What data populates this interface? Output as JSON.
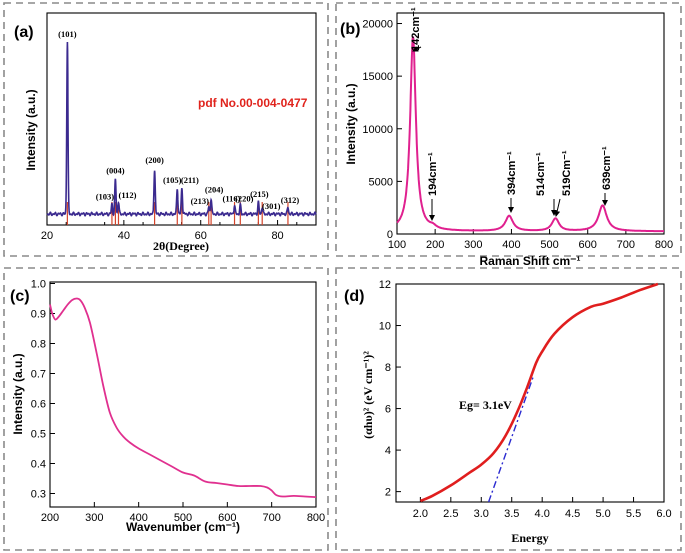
{
  "panels": {
    "a": "(a)",
    "b": "(b)",
    "c": "(c)",
    "d": "(d)"
  },
  "colors": {
    "xrd_line": "#3b2a8f",
    "ref_line": "#d4442a",
    "raman_line": "#e0208f",
    "uv_line": "#e0308f",
    "tauc_line": "#e01e1e",
    "tauc_fit": "#2a2ad0",
    "pdf_text": "#e0231c",
    "frame": "#8a8a8a"
  },
  "chart_data": [
    {
      "panel": "a",
      "type": "line",
      "title": "",
      "xlabel": "2θ(Degree)",
      "ylabel": "Intensity (a.u.)",
      "xlim": [
        20,
        90
      ],
      "ylim": [
        0,
        1.1
      ],
      "xticks": [
        "20",
        "40",
        "60",
        "80"
      ],
      "annotation": "pdf No.00-004-0477",
      "peaks": [
        {
          "x": 25.3,
          "h": 1.0,
          "label": "(101)"
        },
        {
          "x": 36.9,
          "h": 0.06,
          "label": "(103)"
        },
        {
          "x": 37.8,
          "h": 0.2,
          "label": "(004)"
        },
        {
          "x": 38.6,
          "h": 0.07,
          "label": "(112)"
        },
        {
          "x": 48.0,
          "h": 0.26,
          "label": "(200)"
        },
        {
          "x": 53.9,
          "h": 0.15,
          "label": "(105)"
        },
        {
          "x": 55.1,
          "h": 0.15,
          "label": "(211)"
        },
        {
          "x": 62.7,
          "h": 0.09,
          "label": "(204)"
        },
        {
          "x": 62.1,
          "h": 0.04,
          "label": "(213)"
        },
        {
          "x": 68.8,
          "h": 0.05,
          "label": "(116)"
        },
        {
          "x": 70.3,
          "h": 0.05,
          "label": "(220)"
        },
        {
          "x": 75.0,
          "h": 0.07,
          "label": "(215)"
        },
        {
          "x": 76.0,
          "h": 0.04,
          "label": "(301)"
        },
        {
          "x": 82.7,
          "h": 0.04,
          "label": "(312)"
        }
      ],
      "reference_lines": [
        25.3,
        36.9,
        37.8,
        38.6,
        48.0,
        53.9,
        55.1,
        62.1,
        62.7,
        68.8,
        70.3,
        75.0,
        76.0,
        82.7
      ]
    },
    {
      "panel": "b",
      "type": "line",
      "xlabel": "Raman Shift cm⁻¹",
      "ylabel": "Intensity (a.u.)",
      "xlim": [
        100,
        800
      ],
      "ylim": [
        0,
        21000
      ],
      "xticks": [
        100,
        200,
        300,
        400,
        500,
        600,
        700,
        800
      ],
      "yticks": [
        0,
        5000,
        10000,
        15000,
        20000
      ],
      "ytick_labels": [
        "0",
        "5000",
        "10000",
        "15000",
        "20000"
      ],
      "xtick_labels": [
        "100",
        "200",
        "300",
        "400",
        "500",
        "600",
        "700",
        "800"
      ],
      "peaks": [
        {
          "x": 142,
          "h": 18500,
          "w": 9
        },
        {
          "x": 194,
          "h": 250,
          "w": 10
        },
        {
          "x": 394,
          "h": 1450,
          "w": 12
        },
        {
          "x": 514,
          "h": 900,
          "w": 11
        },
        {
          "x": 519,
          "h": 350,
          "w": 9
        },
        {
          "x": 639,
          "h": 2450,
          "w": 13
        }
      ],
      "baseline": 250,
      "labels": [
        "142cm⁻¹",
        "194cm⁻¹",
        "394cm⁻¹",
        "514cm⁻¹",
        "519Cm⁻¹",
        "639cm⁻¹"
      ]
    },
    {
      "panel": "c",
      "type": "line",
      "xlabel": "Wavenumber (cm⁻¹)",
      "ylabel": "Intensity (a.u.)",
      "xlim": [
        200,
        800
      ],
      "ylim": [
        0.26,
        1.0
      ],
      "xticks": [
        "200",
        "300",
        "400",
        "500",
        "600",
        "700",
        "800"
      ],
      "yticks": [
        "0.3",
        "0.4",
        "0.5",
        "0.6",
        "0.7",
        "0.8",
        "0.9",
        "1.0"
      ],
      "x": [
        200,
        205,
        212,
        220,
        230,
        240,
        250,
        260,
        268,
        278,
        290,
        305,
        320,
        335,
        350,
        365,
        380,
        400,
        425,
        450,
        475,
        500,
        525,
        550,
        575,
        600,
        625,
        650,
        675,
        690,
        700,
        710,
        725,
        750,
        775,
        800
      ],
      "y": [
        0.93,
        0.9,
        0.88,
        0.89,
        0.91,
        0.93,
        0.945,
        0.95,
        0.945,
        0.92,
        0.87,
        0.77,
        0.66,
        0.57,
        0.52,
        0.49,
        0.47,
        0.45,
        0.43,
        0.41,
        0.39,
        0.37,
        0.36,
        0.34,
        0.335,
        0.33,
        0.325,
        0.325,
        0.325,
        0.32,
        0.31,
        0.295,
        0.29,
        0.292,
        0.29,
        0.288
      ]
    },
    {
      "panel": "d",
      "type": "line",
      "xlabel": "Energy",
      "ylabel": "(αhυ)² (eV cm⁻¹)²",
      "xlim": [
        1.6,
        6.0
      ],
      "ylim": [
        1.5,
        12
      ],
      "xticks": [
        "2.0",
        "2.5",
        "3.0",
        "3.5",
        "4.0",
        "4.5",
        "5.0",
        "5.5",
        "6.0"
      ],
      "yticks": [
        "2",
        "4",
        "6",
        "8",
        "10",
        "12"
      ],
      "annotation": "Eg= 3.1eV",
      "x": [
        2.0,
        2.2,
        2.5,
        2.8,
        3.0,
        3.2,
        3.4,
        3.6,
        3.75,
        3.9,
        4.0,
        4.2,
        4.5,
        4.8,
        5.0,
        5.3,
        5.6,
        5.9
      ],
      "y": [
        1.55,
        1.8,
        2.3,
        2.9,
        3.3,
        3.85,
        4.7,
        5.9,
        7.0,
        8.2,
        8.75,
        9.6,
        10.4,
        10.9,
        11.05,
        11.35,
        11.7,
        12.0
      ],
      "fit_line": {
        "x": [
          3.12,
          3.85
        ],
        "y": [
          1.5,
          7.5
        ]
      }
    }
  ]
}
